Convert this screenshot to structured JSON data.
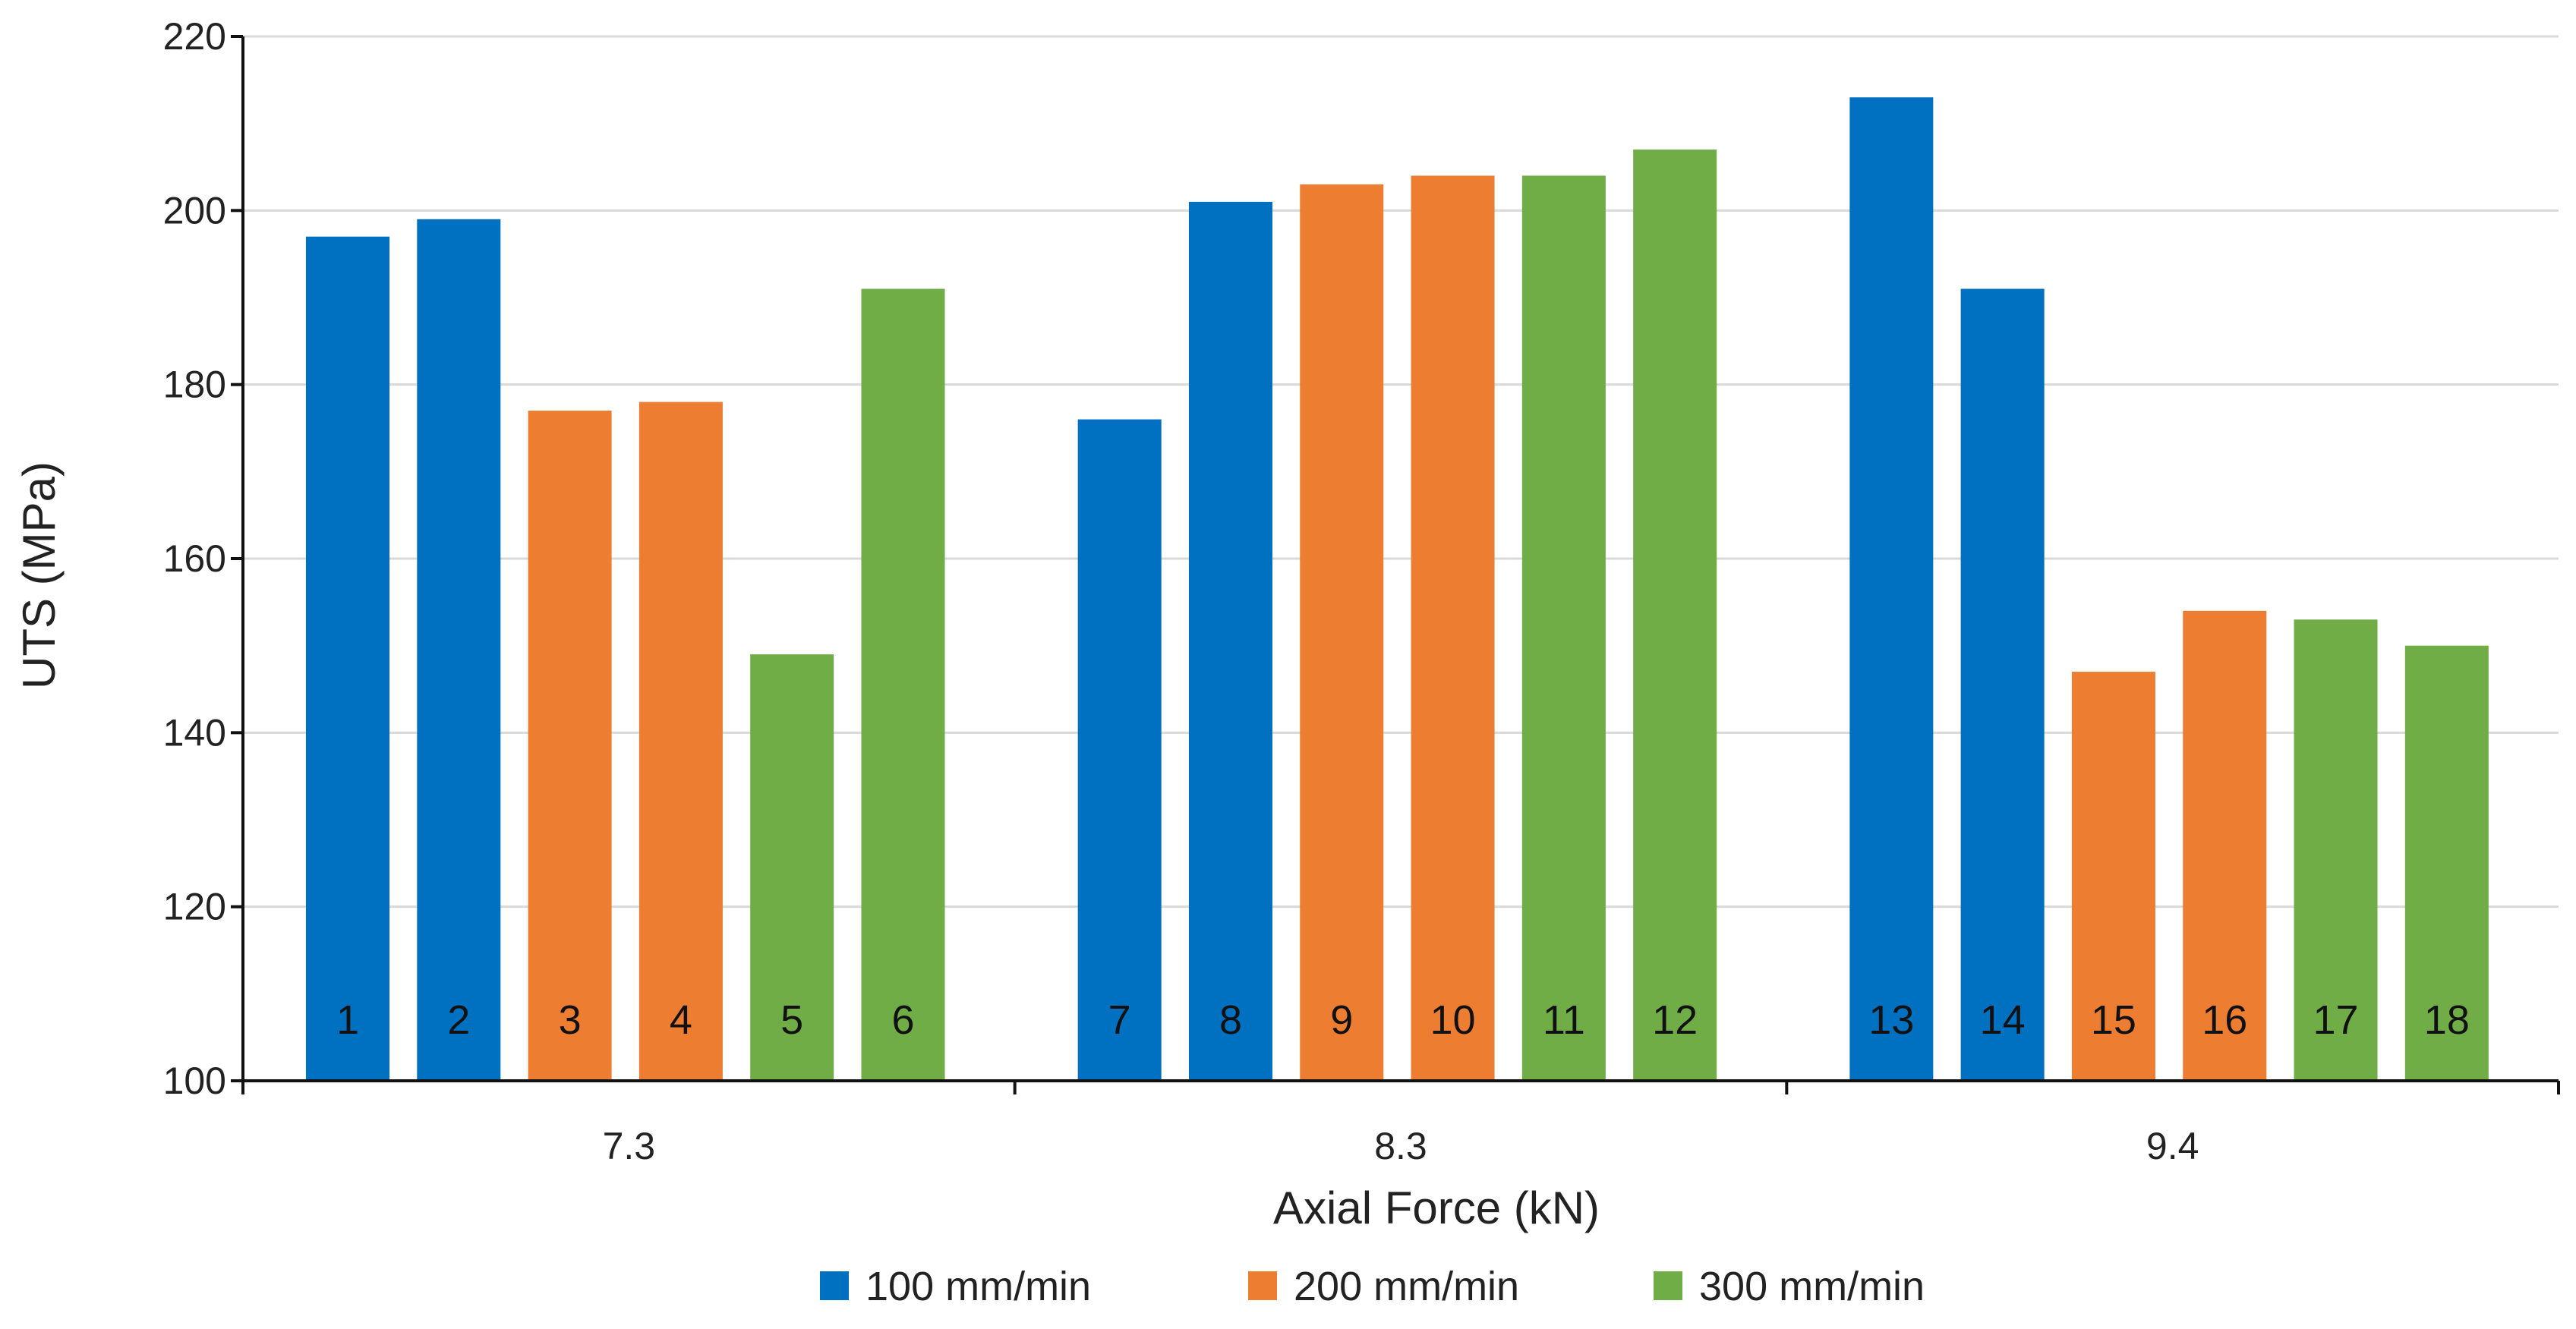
{
  "chart_data": {
    "type": "bar",
    "xlabel": "Axial Force (kN)",
    "ylabel": "UTS (MPa)",
    "ylim": [
      100,
      220
    ],
    "yticks": [
      100,
      120,
      140,
      160,
      180,
      200,
      220
    ],
    "grid": true,
    "legend_position": "bottom",
    "groups": [
      {
        "label": "7.3",
        "bars": [
          {
            "id": "1",
            "series": "100 mm/min",
            "value": 197
          },
          {
            "id": "2",
            "series": "100 mm/min",
            "value": 199
          },
          {
            "id": "3",
            "series": "200 mm/min",
            "value": 177
          },
          {
            "id": "4",
            "series": "200 mm/min",
            "value": 178
          },
          {
            "id": "5",
            "series": "300 mm/min",
            "value": 149
          },
          {
            "id": "6",
            "series": "300 mm/min",
            "value": 191
          }
        ]
      },
      {
        "label": "8.3",
        "bars": [
          {
            "id": "7",
            "series": "100 mm/min",
            "value": 176
          },
          {
            "id": "8",
            "series": "100 mm/min",
            "value": 201
          },
          {
            "id": "9",
            "series": "200 mm/min",
            "value": 203
          },
          {
            "id": "10",
            "series": "200 mm/min",
            "value": 204
          },
          {
            "id": "11",
            "series": "300 mm/min",
            "value": 204
          },
          {
            "id": "12",
            "series": "300 mm/min",
            "value": 207
          }
        ]
      },
      {
        "label": "9.4",
        "bars": [
          {
            "id": "13",
            "series": "100 mm/min",
            "value": 213
          },
          {
            "id": "14",
            "series": "100 mm/min",
            "value": 191
          },
          {
            "id": "15",
            "series": "200 mm/min",
            "value": 147
          },
          {
            "id": "16",
            "series": "200 mm/min",
            "value": 154
          },
          {
            "id": "17",
            "series": "300 mm/min",
            "value": 153
          },
          {
            "id": "18",
            "series": "300 mm/min",
            "value": 150
          }
        ]
      }
    ],
    "series": [
      {
        "name": "100 mm/min",
        "color": "#0070c0"
      },
      {
        "name": "200 mm/min",
        "color": "#ed7d31"
      },
      {
        "name": "300 mm/min",
        "color": "#70ad47"
      }
    ]
  }
}
